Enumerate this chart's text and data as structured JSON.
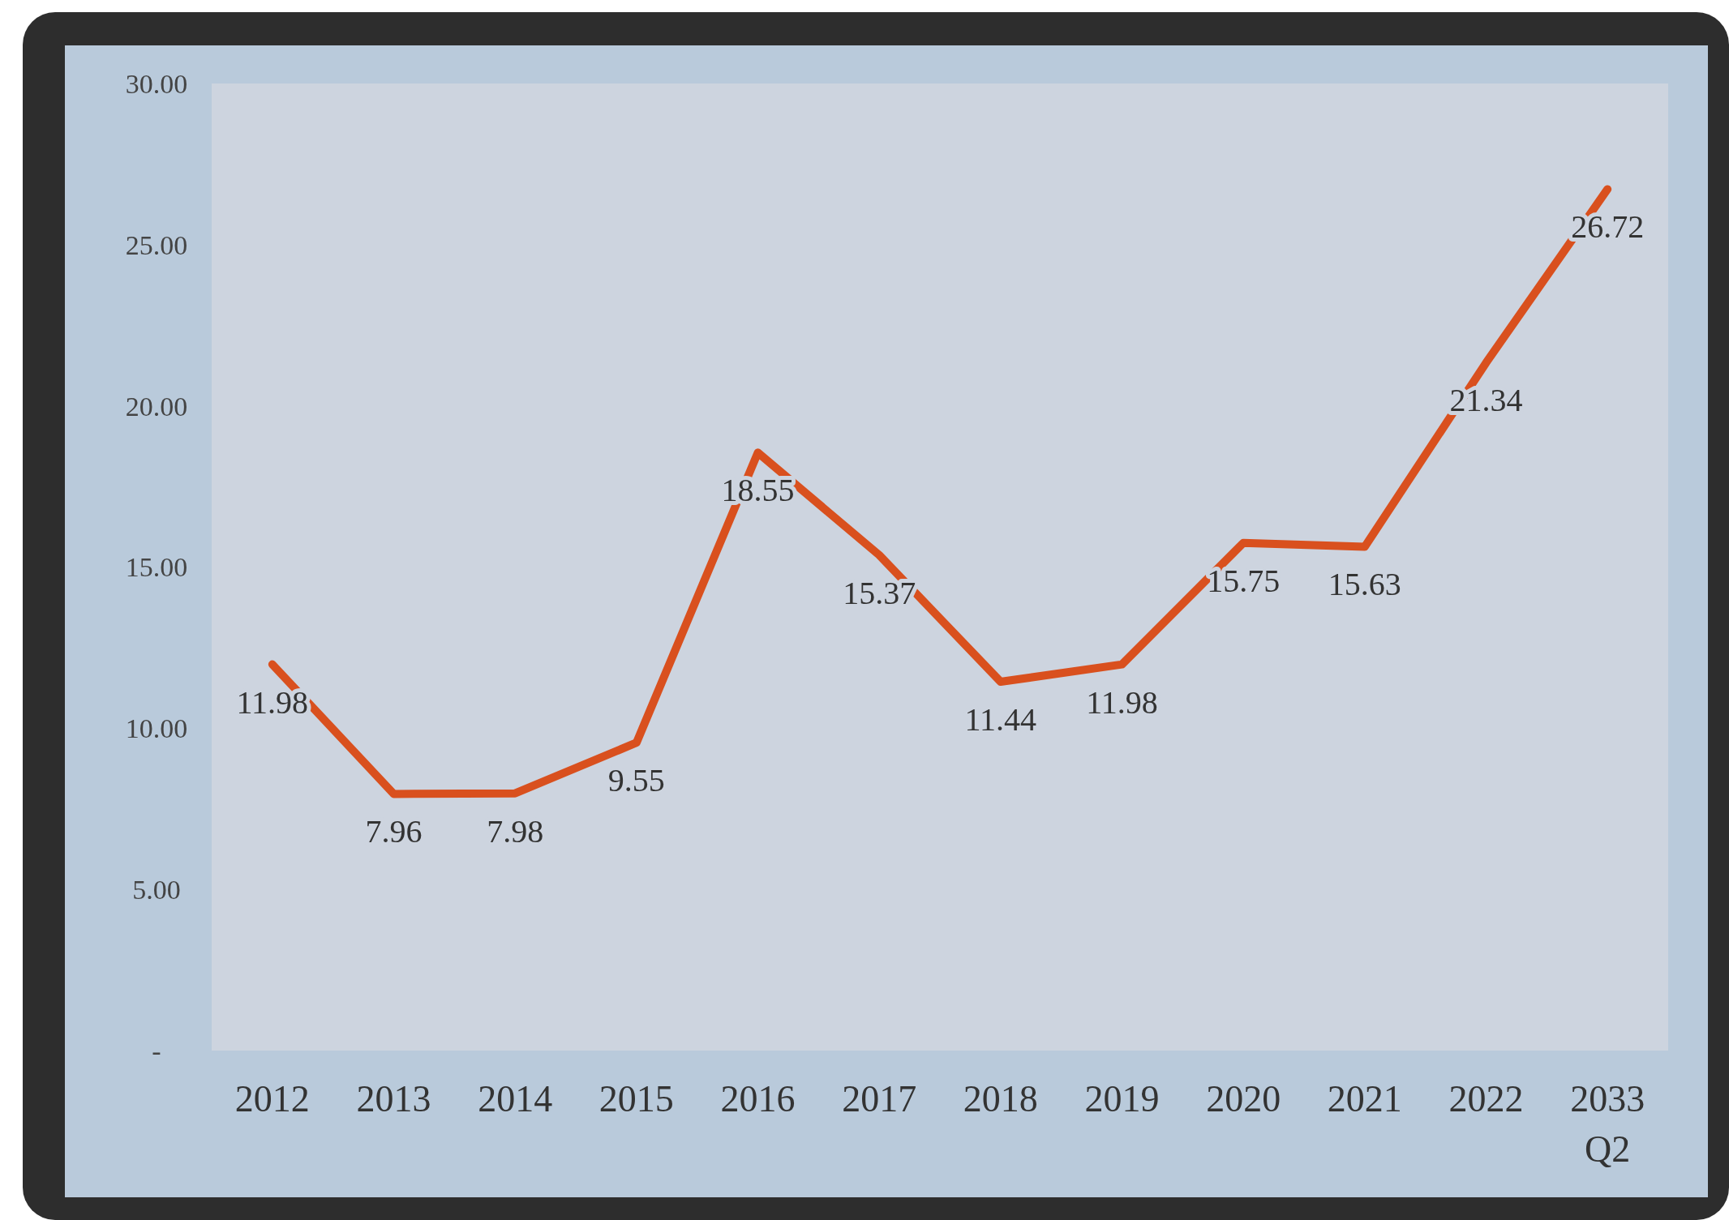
{
  "chart_data": {
    "type": "line",
    "categories": [
      "2012",
      "2013",
      "2014",
      "2015",
      "2016",
      "2017",
      "2018",
      "2019",
      "2020",
      "2021",
      "2022",
      "2033\nQ2"
    ],
    "series": [
      {
        "color": "#d9501e",
        "values": [
          11.98,
          7.96,
          7.98,
          9.55,
          18.55,
          15.37,
          11.44,
          11.98,
          15.75,
          15.63,
          21.34,
          26.72
        ]
      }
    ],
    "ylim": [
      0,
      30
    ],
    "yticks": [
      {
        "value": 0,
        "label": "-"
      },
      {
        "value": 5,
        "label": "5.00"
      },
      {
        "value": 10,
        "label": "10.00"
      },
      {
        "value": 15,
        "label": "15.00"
      },
      {
        "value": 20,
        "label": "20.00"
      },
      {
        "value": 25,
        "label": "25.00"
      },
      {
        "value": 30,
        "label": "30.00"
      }
    ],
    "data_labels": true,
    "grid": false,
    "marker": "none",
    "line_style": "solid"
  }
}
